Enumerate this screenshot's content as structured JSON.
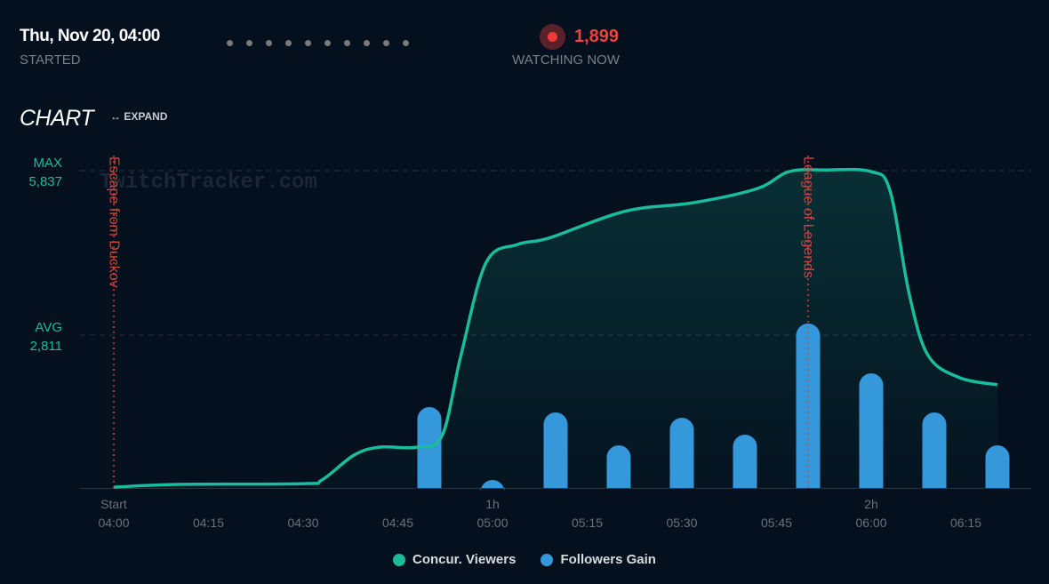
{
  "header": {
    "started_value": "Thu, Nov 20, 04:00",
    "started_label": "STARTED",
    "watching_value": "1,899",
    "watching_label": "WATCHING NOW"
  },
  "chart_section": {
    "title": "CHART",
    "expand_label": "↔ EXPAND"
  },
  "watermark": "TwitchTracker.com",
  "colors": {
    "viewers": "#1abc9c",
    "followers": "#3498db",
    "annotation": "#d0443c"
  },
  "chart_data": {
    "type": "line+bar",
    "x_ticks": [
      {
        "minutes": 0,
        "top": "Start",
        "label": "04:00"
      },
      {
        "minutes": 15,
        "top": "",
        "label": "04:15"
      },
      {
        "minutes": 30,
        "top": "",
        "label": "04:30"
      },
      {
        "minutes": 45,
        "top": "",
        "label": "04:45"
      },
      {
        "minutes": 60,
        "top": "1h",
        "label": "05:00"
      },
      {
        "minutes": 75,
        "top": "",
        "label": "05:15"
      },
      {
        "minutes": 90,
        "top": "",
        "label": "05:30"
      },
      {
        "minutes": 105,
        "top": "",
        "label": "05:45"
      },
      {
        "minutes": 120,
        "top": "2h",
        "label": "06:00"
      },
      {
        "minutes": 135,
        "top": "",
        "label": "06:15"
      }
    ],
    "y_range": [
      0,
      5837
    ],
    "reference_lines": [
      {
        "label": "MAX",
        "value_text": "5,837",
        "value": 5837
      },
      {
        "label": "AVG",
        "value_text": "2,811",
        "value": 2811
      }
    ],
    "annotations": [
      {
        "minutes": 0,
        "text": "Escape from Duckov"
      },
      {
        "minutes": 110,
        "text": "League of Legends"
      }
    ],
    "series": [
      {
        "name": "Concur. Viewers",
        "type": "area",
        "points": [
          [
            0,
            15
          ],
          [
            10,
            65
          ],
          [
            30,
            80
          ],
          [
            33,
            150
          ],
          [
            38,
            600
          ],
          [
            42,
            750
          ],
          [
            48,
            750
          ],
          [
            52,
            960
          ],
          [
            55,
            2440
          ],
          [
            59,
            4150
          ],
          [
            64,
            4480
          ],
          [
            69,
            4600
          ],
          [
            81,
            5090
          ],
          [
            92,
            5250
          ],
          [
            102,
            5510
          ],
          [
            107,
            5820
          ],
          [
            113,
            5850
          ],
          [
            120,
            5820
          ],
          [
            123,
            5460
          ],
          [
            126,
            3580
          ],
          [
            129,
            2440
          ],
          [
            134,
            2030
          ],
          [
            140,
            1900
          ]
        ]
      },
      {
        "name": "Followers Gain",
        "type": "bar",
        "x": [
          50,
          60,
          70,
          80,
          90,
          100,
          110,
          120,
          130,
          140
        ],
        "values": [
          91,
          9,
          85,
          48,
          79,
          60,
          185,
          129,
          85,
          48
        ]
      }
    ],
    "legend": "bottom-center"
  }
}
